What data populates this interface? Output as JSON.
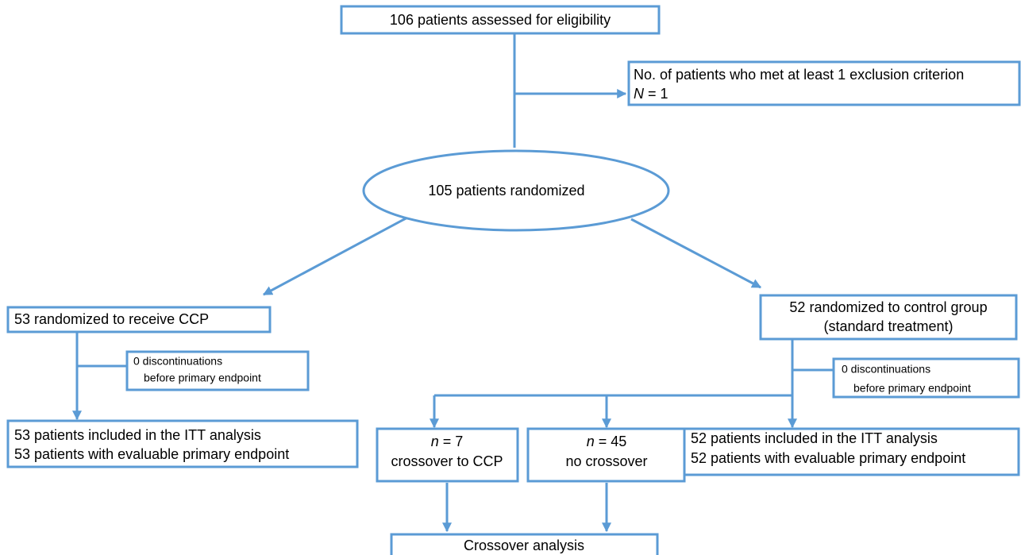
{
  "nodes": [
    {
      "lines": [
        "106 patients assessed for eligibility"
      ]
    },
    {
      "lines": [
        "No. of patients who met at least 1 exclusion criterion",
        {
          "italic": "N",
          "text": " = 1"
        }
      ]
    },
    {
      "lines": [
        "105 patients randomized"
      ]
    },
    {
      "lines": [
        "53 randomized to receive CCP"
      ]
    },
    {
      "lines": [
        "0 discontinuations",
        "before primary endpoint"
      ]
    },
    {
      "lines": [
        "52 randomized to control group",
        "(standard treatment)"
      ]
    },
    {
      "lines": [
        "0 discontinuations",
        "before primary endpoint"
      ]
    },
    {
      "lines": [
        "53 patients included in the ITT analysis",
        "53 patients with evaluable primary endpoint"
      ]
    },
    {
      "lines": [
        {
          "italic": "n",
          "text": " = 7"
        },
        "crossover to CCP"
      ]
    },
    {
      "lines": [
        {
          "italic": "n",
          "text": " = 45"
        },
        "no crossover"
      ]
    },
    {
      "lines": [
        "52 patients included in the ITT analysis",
        "52 patients with evaluable primary endpoint"
      ]
    },
    {
      "lines": [
        "Crossover analysis"
      ]
    }
  ]
}
